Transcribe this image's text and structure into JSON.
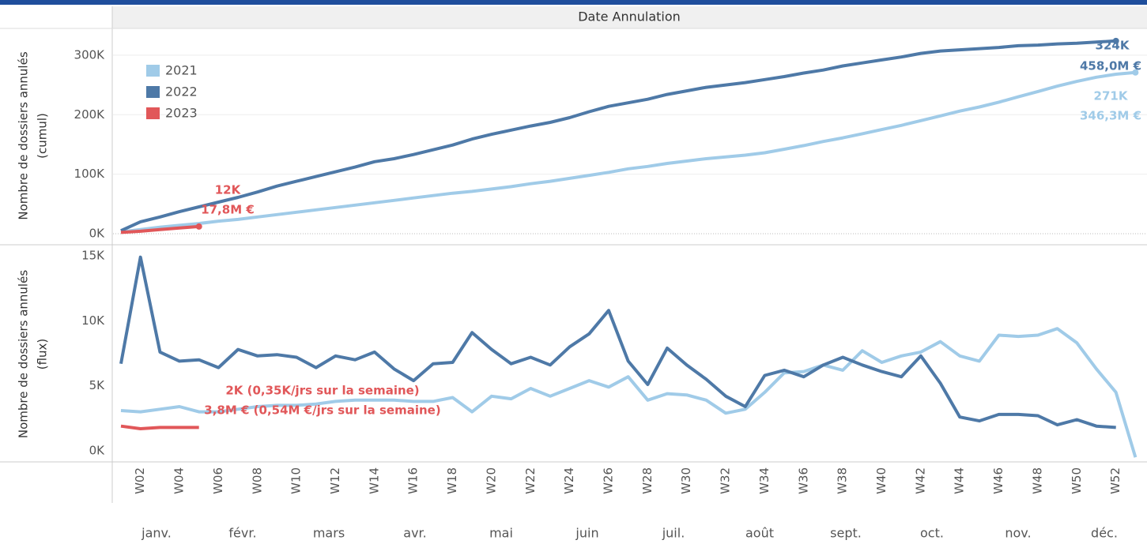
{
  "header": "Date Annulation",
  "chart_data": [
    {
      "type": "line",
      "ylabel": [
        "Nombre de dossiers annulés",
        "(cumul)"
      ],
      "ylim": [
        -16000,
        345000
      ],
      "yticks": [
        {
          "value": 0,
          "label": "0K"
        },
        {
          "value": 100000,
          "label": "100K"
        },
        {
          "value": 200000,
          "label": "200K"
        },
        {
          "value": 300000,
          "label": "300K"
        }
      ],
      "grid": true,
      "legend": "top-left",
      "series": [
        {
          "name": "2021",
          "color": "#a0cbe8",
          "values": [
            3000,
            7000,
            11000,
            14000,
            17000,
            21000,
            24000,
            28000,
            32000,
            36000,
            40000,
            44000,
            48000,
            52000,
            56000,
            60000,
            64000,
            68000,
            71000,
            75000,
            79000,
            84000,
            88000,
            93000,
            98000,
            103000,
            109000,
            113000,
            118000,
            122000,
            126000,
            129000,
            132000,
            136000,
            142000,
            148000,
            155000,
            161000,
            168000,
            175000,
            182000,
            190000,
            198000,
            206000,
            213000,
            221000,
            230000,
            239000,
            248000,
            256000,
            263000,
            268000,
            271000
          ]
        },
        {
          "name": "2022",
          "color": "#4e79a7",
          "values": [
            5000,
            20000,
            28000,
            37000,
            45000,
            53000,
            61000,
            70000,
            80000,
            88000,
            96000,
            104000,
            112000,
            121000,
            126000,
            133000,
            141000,
            149000,
            159000,
            167000,
            174000,
            181000,
            187000,
            195000,
            205000,
            214000,
            220000,
            226000,
            234000,
            240000,
            246000,
            250000,
            254000,
            259000,
            264000,
            270000,
            275000,
            282000,
            287000,
            292000,
            297000,
            303000,
            307000,
            309000,
            311000,
            313000,
            316000,
            317000,
            319000,
            320000,
            322000,
            324000,
            null
          ]
        },
        {
          "name": "2023",
          "color": "#e15759",
          "values": [
            2000,
            4000,
            7000,
            9500,
            12000,
            null,
            null,
            null,
            null,
            null,
            null,
            null,
            null,
            null,
            null,
            null,
            null,
            null,
            null,
            null,
            null,
            null,
            null,
            null,
            null,
            null,
            null,
            null,
            null,
            null,
            null,
            null,
            null,
            null,
            null,
            null,
            null,
            null,
            null,
            null,
            null,
            null,
            null,
            null,
            null,
            null,
            null,
            null,
            null,
            null,
            null,
            null,
            null
          ]
        }
      ],
      "annotations": [
        {
          "text": "12K",
          "color": "#e15759"
        },
        {
          "text": "17,8M €",
          "color": "#e15759"
        },
        {
          "text": "324K",
          "color": "#4e79a7"
        },
        {
          "text": "458,0M €",
          "color": "#4e79a7"
        },
        {
          "text": "271K",
          "color": "#a0cbe8"
        },
        {
          "text": "346,3M €",
          "color": "#a0cbe8"
        }
      ]
    },
    {
      "type": "line",
      "ylabel": [
        "Nombre de dossiers annulés",
        "(flux)"
      ],
      "ylim": [
        -850,
        15730
      ],
      "yticks": [
        {
          "value": 0,
          "label": "0K"
        },
        {
          "value": 5000,
          "label": "5K"
        },
        {
          "value": 10000,
          "label": "10K"
        },
        {
          "value": 15000,
          "label": "15K"
        }
      ],
      "categories": [
        null,
        "W02",
        null,
        "W04",
        null,
        "W06",
        null,
        "W08",
        null,
        "W10",
        null,
        "W12",
        null,
        "W14",
        null,
        "W16",
        null,
        "W18",
        null,
        "W20",
        null,
        "W22",
        null,
        "W24",
        null,
        "W26",
        null,
        "W28",
        null,
        "W30",
        null,
        "W32",
        null,
        "W34",
        null,
        "W36",
        null,
        "W38",
        null,
        "W40",
        null,
        "W42",
        null,
        "W44",
        null,
        "W46",
        null,
        "W48",
        null,
        "W50",
        null,
        "W52",
        null
      ],
      "months": [
        "janv.",
        "févr.",
        "mars",
        "avr.",
        "mai",
        "juin",
        "juil.",
        "août",
        "sept.",
        "oct.",
        "nov.",
        "déc."
      ],
      "series": [
        {
          "color": "#a0cbe8",
          "values": [
            3100,
            3000,
            3200,
            3400,
            3000,
            3000,
            3200,
            3400,
            3500,
            3500,
            3600,
            3800,
            3900,
            3900,
            3900,
            3800,
            3800,
            4100,
            3000,
            4200,
            4000,
            4800,
            4200,
            4800,
            5400,
            4900,
            5700,
            3900,
            4400,
            4300,
            3900,
            2900,
            3200,
            4500,
            6000,
            6100,
            6600,
            6200,
            7700,
            6800,
            7300,
            7600,
            8400,
            7300,
            6900,
            8900,
            8800,
            8900,
            9400,
            8300,
            6300,
            4500,
            -500
          ]
        },
        {
          "color": "#4e79a7",
          "values": [
            6700,
            14900,
            7600,
            6900,
            7000,
            6400,
            7800,
            7300,
            7400,
            7200,
            6400,
            7300,
            7000,
            7600,
            6300,
            5400,
            6700,
            6800,
            9100,
            7800,
            6700,
            7200,
            6600,
            8000,
            9000,
            10800,
            6900,
            5100,
            7900,
            6600,
            5500,
            4200,
            3400,
            5800,
            6200,
            5700,
            6600,
            7200,
            6600,
            6100,
            5700,
            7300,
            5200,
            2600,
            2300,
            2800,
            2800,
            2700,
            2000,
            2400,
            1900,
            1800,
            null
          ]
        },
        {
          "color": "#e15759",
          "values": [
            1900,
            1700,
            1800,
            1800,
            1800,
            null,
            null,
            null,
            null,
            null,
            null,
            null,
            null,
            null,
            null,
            null,
            null,
            null,
            null,
            null,
            null,
            null,
            null,
            null,
            null,
            null,
            null,
            null,
            null,
            null,
            null,
            null,
            null,
            null,
            null,
            null,
            null,
            null,
            null,
            null,
            null,
            null,
            null,
            null,
            null,
            null,
            null,
            null,
            null,
            null,
            null,
            null,
            null
          ]
        }
      ],
      "annotations": [
        {
          "text": "2K (0,35K/jrs sur la semaine)",
          "color": "#e15759"
        },
        {
          "text": "3,8M € (0,54M €/jrs sur la semaine)",
          "color": "#e15759"
        }
      ]
    }
  ]
}
